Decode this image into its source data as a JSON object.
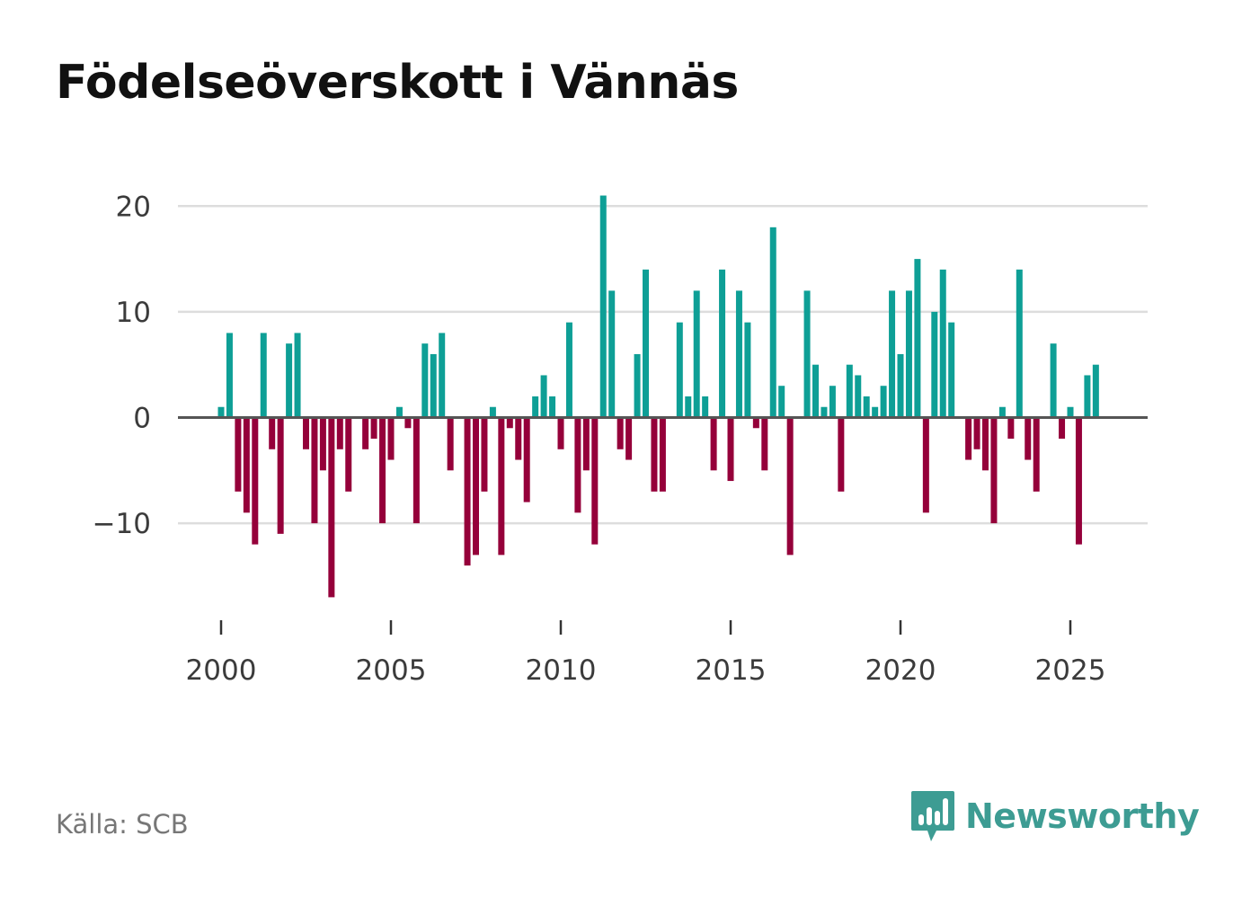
{
  "title": "Födelseöverskott i Vännäs",
  "source": "Källa: SCB",
  "brand": {
    "name": "Newsworthy",
    "icon": "newsworthy-logo-icon"
  },
  "colors": {
    "positive": "#0e9f96",
    "negative": "#95003a",
    "grid": "#dddddd",
    "baseline": "#555555"
  },
  "chart_data": {
    "type": "bar",
    "title": "Födelseöverskott i Vännäs",
    "xlabel": "",
    "ylabel": "",
    "x_ticks": [
      2000,
      2005,
      2010,
      2015,
      2020,
      2025
    ],
    "y_ticks": [
      -10,
      0,
      10,
      20
    ],
    "y_tick_labels": [
      "−10",
      "0",
      "10",
      "20"
    ],
    "ylim": [
      -19.5,
      21
    ],
    "xlim": [
      1999,
      2027.5
    ],
    "grid": true,
    "series": [
      {
        "name": "Födelseöverskott",
        "x": [
          2000.0,
          2000.25,
          2000.5,
          2000.75,
          2001.0,
          2001.25,
          2001.5,
          2001.75,
          2002.0,
          2002.25,
          2002.5,
          2002.75,
          2003.0,
          2003.25,
          2003.5,
          2003.75,
          2004.0,
          2004.25,
          2004.5,
          2004.75,
          2005.0,
          2005.25,
          2005.5,
          2005.75,
          2006.0,
          2006.25,
          2006.5,
          2006.75,
          2007.0,
          2007.25,
          2007.5,
          2007.75,
          2008.0,
          2008.25,
          2008.5,
          2008.75,
          2009.0,
          2009.25,
          2009.5,
          2009.75,
          2010.0,
          2010.25,
          2010.5,
          2010.75,
          2011.0,
          2011.25,
          2011.5,
          2011.75,
          2012.0,
          2012.25,
          2012.5,
          2012.75,
          2013.0,
          2013.25,
          2013.5,
          2013.75,
          2014.0,
          2014.25,
          2014.5,
          2014.75,
          2015.0,
          2015.25,
          2015.5,
          2015.75,
          2016.0,
          2016.25,
          2016.5,
          2016.75,
          2017.0,
          2017.25,
          2017.5,
          2017.75,
          2018.0,
          2018.25,
          2018.5,
          2018.75,
          2019.0,
          2019.25,
          2019.5,
          2019.75,
          2020.0,
          2020.25,
          2020.5,
          2020.75,
          2021.0,
          2021.25,
          2021.5,
          2021.75,
          2022.0,
          2022.25,
          2022.5,
          2022.75,
          2023.0,
          2023.25,
          2023.5,
          2023.75,
          2024.0,
          2024.25,
          2024.5,
          2024.75,
          2025.0,
          2025.25,
          2025.5,
          2025.75
        ],
        "values": [
          1,
          8,
          -7,
          -9,
          -12,
          8,
          -3,
          -11,
          7,
          8,
          -3,
          -10,
          -5,
          -17,
          -3,
          -7,
          0,
          -3,
          -2,
          -10,
          -4,
          1,
          -1,
          -10,
          7,
          6,
          8,
          -5,
          0,
          -14,
          -13,
          -7,
          1,
          -13,
          -1,
          -4,
          -8,
          2,
          4,
          2,
          -3,
          9,
          -9,
          -5,
          -12,
          21,
          12,
          -3,
          -4,
          6,
          14,
          -7,
          -7,
          0,
          9,
          2,
          12,
          2,
          -5,
          14,
          -6,
          12,
          9,
          -1,
          -5,
          18,
          3,
          -13,
          0,
          12,
          5,
          1,
          3,
          -7,
          5,
          4,
          2,
          1,
          3,
          12,
          6,
          12,
          15,
          -9,
          10,
          14,
          9,
          0,
          -4,
          -3,
          -5,
          -10,
          1,
          -2,
          14,
          -4,
          -7,
          0,
          7,
          -2,
          1,
          -12,
          4,
          5
        ]
      }
    ]
  }
}
